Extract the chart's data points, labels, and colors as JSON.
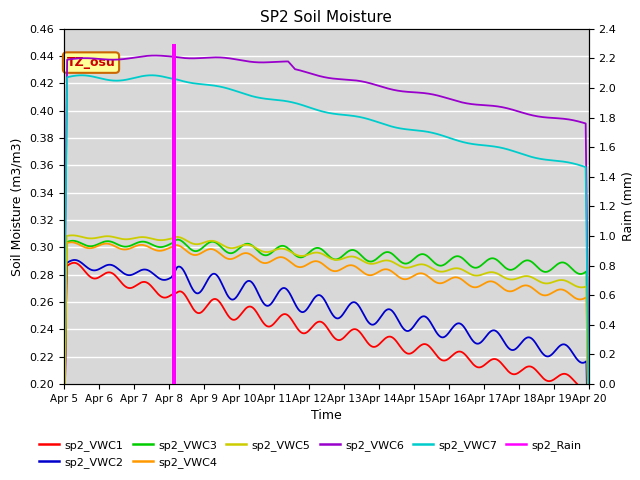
{
  "title": "SP2 Soil Moisture",
  "xlabel": "Time",
  "ylabel_left": "Soil Moisture (m3/m3)",
  "ylabel_right": "Raim (mm)",
  "xlim_days": [
    0,
    15
  ],
  "ylim_left": [
    0.2,
    0.46
  ],
  "ylim_right": [
    0.0,
    2.4
  ],
  "x_tick_labels": [
    "Apr 5",
    "Apr 6",
    "Apr 7",
    "Apr 8",
    "Apr 9",
    "Apr 10",
    "Apr 11",
    "Apr 12",
    "Apr 13",
    "Apr 14",
    "Apr 15",
    "Apr 16",
    "Apr 17",
    "Apr 18",
    "Apr 19",
    "Apr 20"
  ],
  "annotation_label": "TZ_osu",
  "annotation_box_color": "#ffff99",
  "annotation_box_edgecolor": "#cc6600",
  "annotation_text_color": "#cc0000",
  "rain_event_day": 3.15,
  "rain_peak": 2.3,
  "background_color": "#d8d8d8",
  "line_colors": {
    "VWC1": "#ff0000",
    "VWC2": "#0000cc",
    "VWC3": "#00cc00",
    "VWC4": "#ff9900",
    "VWC5": "#cccc00",
    "VWC6": "#9900cc",
    "VWC7": "#00cccc",
    "Rain": "#ff00ff"
  },
  "legend_labels": [
    "sp2_VWC1",
    "sp2_VWC2",
    "sp2_VWC3",
    "sp2_VWC4",
    "sp2_VWC5",
    "sp2_VWC6",
    "sp2_VWC7",
    "sp2_Rain"
  ]
}
